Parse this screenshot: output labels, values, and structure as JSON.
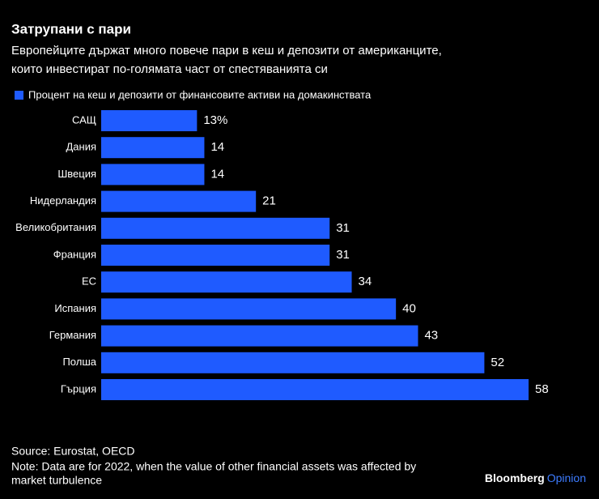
{
  "chart_data": {
    "type": "hbar",
    "title": "Затрупани с пари",
    "subtitle": [
      "Европейците държат много повече пари в кеш и депозити от американците,",
      "които инвестират по-голямата част от спестяванията си"
    ],
    "categories": [
      "САЩ",
      "Дания",
      "Швеция",
      "Нидерландия",
      "Великобритания",
      "Франция",
      "ЕС",
      "Испания",
      "Германия",
      "Полша",
      "Гърция"
    ],
    "series": [
      {
        "name": "Процент на кеш и депозити от финансовите активи на домакинствата",
        "color": "#1f5bff",
        "values": [
          13,
          14,
          14,
          21,
          31,
          31,
          34,
          40,
          43,
          52,
          58
        ],
        "value_labels": [
          "13%",
          "14",
          "14",
          "21",
          "31",
          "31",
          "34",
          "40",
          "43",
          "52",
          "58"
        ]
      }
    ],
    "source": "Source: Eurostat, OECD",
    "note": [
      "Note: Data are for 2022, when the value of other financial assets was affected by",
      "market turbulence"
    ]
  },
  "brand": {
    "name": "Bloomberg",
    "suffix": "Opinion"
  }
}
